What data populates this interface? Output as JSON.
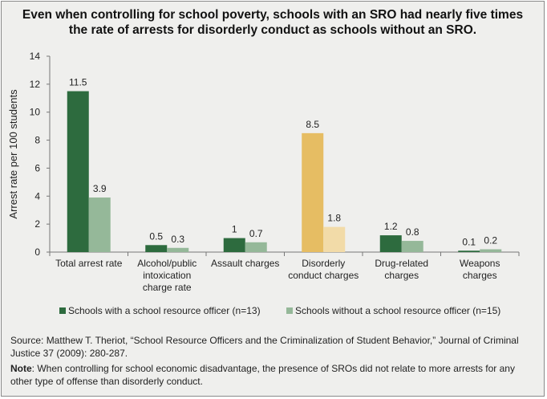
{
  "chart_data": {
    "type": "bar",
    "title": "Even when controlling for school poverty, schools with an SRO had nearly five times the rate of arrests for disorderly conduct as schools without an SRO.",
    "ylabel": "Arrest rate per 100 students",
    "xlabel": "",
    "ylim": [
      0,
      14
    ],
    "yticks": [
      0,
      2,
      4,
      6,
      8,
      10,
      12,
      14
    ],
    "categories": [
      [
        "Total arrest rate"
      ],
      [
        "Alcohol/public",
        "intoxication",
        "charge rate"
      ],
      [
        "Assault charges"
      ],
      [
        "Disorderly",
        "conduct charges"
      ],
      [
        "Drug-related",
        "charges"
      ],
      [
        "Weapons",
        "charges"
      ]
    ],
    "series": [
      {
        "name": "Schools with a school resource officer (n=13)",
        "values": [
          11.5,
          0.5,
          1,
          8.5,
          1.2,
          0.1
        ],
        "labels": [
          "11.5",
          "0.5",
          "1",
          "8.5",
          "1.2",
          "0.1"
        ],
        "color": "#2d6b3e"
      },
      {
        "name": "Schools without a school resource officer (n=15)",
        "values": [
          3.9,
          0.3,
          0.7,
          1.8,
          0.8,
          0.2
        ],
        "labels": [
          "3.9",
          "0.3",
          "0.7",
          "1.8",
          "0.8",
          "0.2"
        ],
        "color": "#95b899"
      }
    ],
    "highlight": {
      "category_index": 3,
      "colors": [
        "#e6bd63",
        "#f2dba8"
      ]
    },
    "legend_position": "bottom",
    "grid": false
  },
  "footer": {
    "source": "Source: Matthew T. Theriot, “School Resource Officers and the Criminalization of Student Behavior,” Journal of Criminal Justice 37 (2009): 280-287.",
    "note_label": "Note",
    "note_text": ": When controlling for school economic disadvantage, the presence of SROs did not relate to more arrests for any other type of offense than disorderly conduct."
  }
}
